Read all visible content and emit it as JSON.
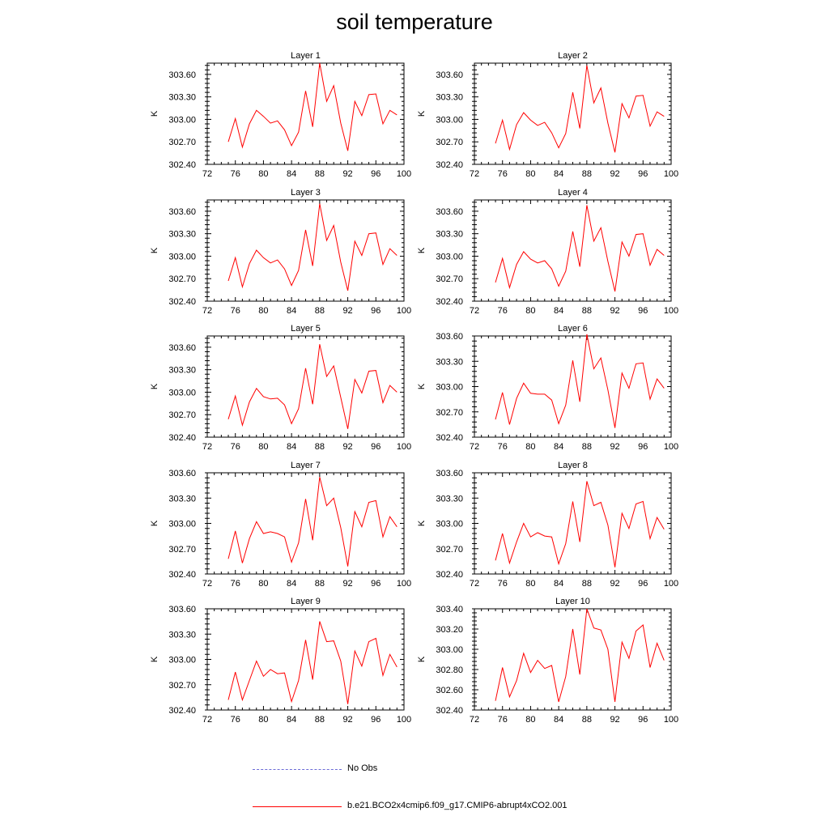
{
  "title": "soil temperature",
  "colors": {
    "model": "#ff0000",
    "obs": "#6b6bd6",
    "axes": "#000000"
  },
  "legend": {
    "obs_label": "No Obs",
    "model_label": "b.e21.BCO2x4cmip6.f09_g17.CMIP6-abrupt4xCO2.001"
  },
  "chart_data": [
    {
      "type": "line",
      "title": "Layer 1",
      "ylabel": "K",
      "xlim": [
        72,
        100
      ],
      "x_ticks": [
        "72",
        "76",
        "80",
        "84",
        "88",
        "92",
        "96",
        "100"
      ],
      "ylim": [
        302.4,
        303.75
      ],
      "y_ticks": [
        "302.40",
        "302.70",
        "303.00",
        "303.30",
        "303.60"
      ],
      "y_tick_values": [
        302.4,
        302.7,
        303.0,
        303.3,
        303.6
      ],
      "x": [
        75,
        76,
        77,
        78,
        79,
        80,
        81,
        82,
        83,
        84,
        85,
        86,
        87,
        88,
        89,
        90,
        91,
        92,
        93,
        94,
        95,
        96,
        97,
        98,
        99
      ],
      "values": [
        302.7,
        303.01,
        302.63,
        302.94,
        303.12,
        303.04,
        302.95,
        302.98,
        302.86,
        302.65,
        302.83,
        303.38,
        302.9,
        303.75,
        303.24,
        303.45,
        302.95,
        302.58,
        303.24,
        303.05,
        303.33,
        303.34,
        302.94,
        303.12,
        303.06
      ]
    },
    {
      "type": "line",
      "title": "Layer 2",
      "ylabel": "K",
      "xlim": [
        72,
        100
      ],
      "x_ticks": [
        "72",
        "76",
        "80",
        "84",
        "88",
        "92",
        "96",
        "100"
      ],
      "ylim": [
        302.4,
        303.75
      ],
      "y_ticks": [
        "302.40",
        "302.70",
        "303.00",
        "303.30",
        "303.60"
      ],
      "y_tick_values": [
        302.4,
        302.7,
        303.0,
        303.3,
        303.6
      ],
      "x": [
        75,
        76,
        77,
        78,
        79,
        80,
        81,
        82,
        83,
        84,
        85,
        86,
        87,
        88,
        89,
        90,
        91,
        92,
        93,
        94,
        95,
        96,
        97,
        98,
        99
      ],
      "values": [
        302.68,
        302.99,
        302.6,
        302.93,
        303.09,
        302.99,
        302.92,
        302.96,
        302.82,
        302.62,
        302.81,
        303.36,
        302.88,
        303.72,
        303.22,
        303.42,
        302.95,
        302.56,
        303.21,
        303.02,
        303.31,
        303.32,
        302.91,
        303.1,
        303.04
      ]
    },
    {
      "type": "line",
      "title": "Layer 3",
      "ylabel": "K",
      "xlim": [
        72,
        100
      ],
      "x_ticks": [
        "72",
        "76",
        "80",
        "84",
        "88",
        "92",
        "96",
        "100"
      ],
      "ylim": [
        302.4,
        303.75
      ],
      "y_ticks": [
        "302.40",
        "302.70",
        "303.00",
        "303.30",
        "303.60"
      ],
      "y_tick_values": [
        302.4,
        302.7,
        303.0,
        303.3,
        303.6
      ],
      "x": [
        75,
        76,
        77,
        78,
        79,
        80,
        81,
        82,
        83,
        84,
        85,
        86,
        87,
        88,
        89,
        90,
        91,
        92,
        93,
        94,
        95,
        96,
        97,
        98,
        99
      ],
      "values": [
        302.67,
        302.98,
        302.59,
        302.9,
        303.08,
        302.98,
        302.91,
        302.95,
        302.83,
        302.61,
        302.81,
        303.35,
        302.87,
        303.7,
        303.21,
        303.41,
        302.92,
        302.54,
        303.2,
        303.01,
        303.3,
        303.31,
        302.89,
        303.1,
        303.01
      ]
    },
    {
      "type": "line",
      "title": "Layer 4",
      "ylabel": "K",
      "xlim": [
        72,
        100
      ],
      "x_ticks": [
        "72",
        "76",
        "80",
        "84",
        "88",
        "92",
        "96",
        "100"
      ],
      "ylim": [
        302.4,
        303.75
      ],
      "y_ticks": [
        "302.40",
        "302.70",
        "303.00",
        "303.30",
        "303.60"
      ],
      "y_tick_values": [
        302.4,
        302.7,
        303.0,
        303.3,
        303.6
      ],
      "x": [
        75,
        76,
        77,
        78,
        79,
        80,
        81,
        82,
        83,
        84,
        85,
        86,
        87,
        88,
        89,
        90,
        91,
        92,
        93,
        94,
        95,
        96,
        97,
        98,
        99
      ],
      "values": [
        302.65,
        302.97,
        302.58,
        302.89,
        303.06,
        302.96,
        302.91,
        302.94,
        302.83,
        302.6,
        302.8,
        303.33,
        302.86,
        303.68,
        303.2,
        303.38,
        302.93,
        302.53,
        303.19,
        303.0,
        303.29,
        303.3,
        302.88,
        303.09,
        303.01
      ]
    },
    {
      "type": "line",
      "title": "Layer 5",
      "ylabel": "K",
      "xlim": [
        72,
        100
      ],
      "x_ticks": [
        "72",
        "76",
        "80",
        "84",
        "88",
        "92",
        "96",
        "100"
      ],
      "ylim": [
        302.4,
        303.75
      ],
      "y_ticks": [
        "302.40",
        "302.70",
        "303.00",
        "303.30",
        "303.60"
      ],
      "y_tick_values": [
        302.4,
        302.7,
        303.0,
        303.3,
        303.6
      ],
      "x": [
        75,
        76,
        77,
        78,
        79,
        80,
        81,
        82,
        83,
        84,
        85,
        86,
        87,
        88,
        89,
        90,
        91,
        92,
        93,
        94,
        95,
        96,
        97,
        98,
        99
      ],
      "values": [
        302.64,
        302.95,
        302.56,
        302.87,
        303.05,
        302.94,
        302.91,
        302.92,
        302.83,
        302.58,
        302.78,
        303.32,
        302.84,
        303.64,
        303.21,
        303.35,
        302.93,
        302.51,
        303.17,
        302.99,
        303.28,
        303.29,
        302.86,
        303.09,
        303.0
      ]
    },
    {
      "type": "line",
      "title": "Layer 6",
      "ylabel": "K",
      "xlim": [
        72,
        100
      ],
      "x_ticks": [
        "72",
        "76",
        "80",
        "84",
        "88",
        "92",
        "96",
        "100"
      ],
      "ylim": [
        302.4,
        303.6
      ],
      "y_ticks": [
        "302.40",
        "302.70",
        "303.00",
        "303.30",
        "303.60"
      ],
      "y_tick_values": [
        302.4,
        302.7,
        303.0,
        303.3,
        303.6
      ],
      "x": [
        75,
        76,
        77,
        78,
        79,
        80,
        81,
        82,
        83,
        84,
        85,
        86,
        87,
        88,
        89,
        90,
        91,
        92,
        93,
        94,
        95,
        96,
        97,
        98,
        99
      ],
      "values": [
        302.61,
        302.93,
        302.55,
        302.86,
        303.04,
        302.92,
        302.91,
        302.91,
        302.84,
        302.56,
        302.78,
        303.31,
        302.82,
        303.62,
        303.21,
        303.34,
        302.96,
        302.51,
        303.16,
        302.98,
        303.27,
        303.28,
        302.85,
        303.09,
        302.98
      ]
    },
    {
      "type": "line",
      "title": "Layer 7",
      "ylabel": "K",
      "xlim": [
        72,
        100
      ],
      "x_ticks": [
        "72",
        "76",
        "80",
        "84",
        "88",
        "92",
        "96",
        "100"
      ],
      "ylim": [
        302.4,
        303.6
      ],
      "y_ticks": [
        "302.40",
        "302.70",
        "303.00",
        "303.30",
        "303.60"
      ],
      "y_tick_values": [
        302.4,
        302.7,
        303.0,
        303.3,
        303.6
      ],
      "x": [
        75,
        76,
        77,
        78,
        79,
        80,
        81,
        82,
        83,
        84,
        85,
        86,
        87,
        88,
        89,
        90,
        91,
        92,
        93,
        94,
        95,
        96,
        97,
        98,
        99
      ],
      "values": [
        302.58,
        302.91,
        302.53,
        302.82,
        303.02,
        302.88,
        302.9,
        302.88,
        302.84,
        302.54,
        302.77,
        303.29,
        302.8,
        303.55,
        303.21,
        303.3,
        302.95,
        302.49,
        303.14,
        302.96,
        303.25,
        303.27,
        302.84,
        303.08,
        302.96
      ]
    },
    {
      "type": "line",
      "title": "Layer 8",
      "ylabel": "K",
      "xlim": [
        72,
        100
      ],
      "x_ticks": [
        "72",
        "76",
        "80",
        "84",
        "88",
        "92",
        "96",
        "100"
      ],
      "ylim": [
        302.4,
        303.6
      ],
      "y_ticks": [
        "302.40",
        "302.70",
        "303.00",
        "303.30",
        "303.60"
      ],
      "y_tick_values": [
        302.4,
        302.7,
        303.0,
        303.3,
        303.6
      ],
      "x": [
        75,
        76,
        77,
        78,
        79,
        80,
        81,
        82,
        83,
        84,
        85,
        86,
        87,
        88,
        89,
        90,
        91,
        92,
        93,
        94,
        95,
        96,
        97,
        98,
        99
      ],
      "values": [
        302.56,
        302.88,
        302.53,
        302.78,
        303.0,
        302.84,
        302.89,
        302.85,
        302.84,
        302.52,
        302.76,
        303.26,
        302.78,
        303.5,
        303.21,
        303.25,
        302.98,
        302.48,
        303.12,
        302.94,
        303.23,
        303.26,
        302.82,
        303.07,
        302.93
      ]
    },
    {
      "type": "line",
      "title": "Layer 9",
      "ylabel": "K",
      "xlim": [
        72,
        100
      ],
      "x_ticks": [
        "72",
        "76",
        "80",
        "84",
        "88",
        "92",
        "96",
        "100"
      ],
      "ylim": [
        302.4,
        303.6
      ],
      "y_ticks": [
        "302.40",
        "302.70",
        "303.00",
        "303.30",
        "303.60"
      ],
      "y_tick_values": [
        302.4,
        302.7,
        303.0,
        303.3,
        303.6
      ],
      "x": [
        75,
        76,
        77,
        78,
        79,
        80,
        81,
        82,
        83,
        84,
        85,
        86,
        87,
        88,
        89,
        90,
        91,
        92,
        93,
        94,
        95,
        96,
        97,
        98,
        99
      ],
      "values": [
        302.52,
        302.85,
        302.52,
        302.75,
        302.98,
        302.8,
        302.88,
        302.83,
        302.84,
        302.5,
        302.75,
        303.23,
        302.76,
        303.45,
        303.21,
        303.22,
        302.98,
        302.47,
        303.1,
        302.92,
        303.21,
        303.25,
        302.81,
        303.06,
        302.91
      ]
    },
    {
      "type": "line",
      "title": "Layer 10",
      "ylabel": "K",
      "xlim": [
        72,
        100
      ],
      "x_ticks": [
        "72",
        "76",
        "80",
        "84",
        "88",
        "92",
        "96",
        "100"
      ],
      "ylim": [
        302.4,
        303.4
      ],
      "y_ticks": [
        "302.40",
        "302.60",
        "302.80",
        "303.00",
        "303.20",
        "303.40"
      ],
      "y_tick_values": [
        302.4,
        302.6,
        302.8,
        303.0,
        303.2,
        303.4
      ],
      "x": [
        75,
        76,
        77,
        78,
        79,
        80,
        81,
        82,
        83,
        84,
        85,
        86,
        87,
        88,
        89,
        90,
        91,
        92,
        93,
        94,
        95,
        96,
        97,
        98,
        99
      ],
      "values": [
        302.49,
        302.82,
        302.53,
        302.69,
        302.96,
        302.77,
        302.89,
        302.81,
        302.84,
        302.48,
        302.73,
        303.2,
        302.75,
        303.4,
        303.21,
        303.19,
        303.0,
        302.48,
        303.07,
        302.91,
        303.18,
        303.24,
        302.82,
        303.06,
        302.89
      ]
    }
  ]
}
